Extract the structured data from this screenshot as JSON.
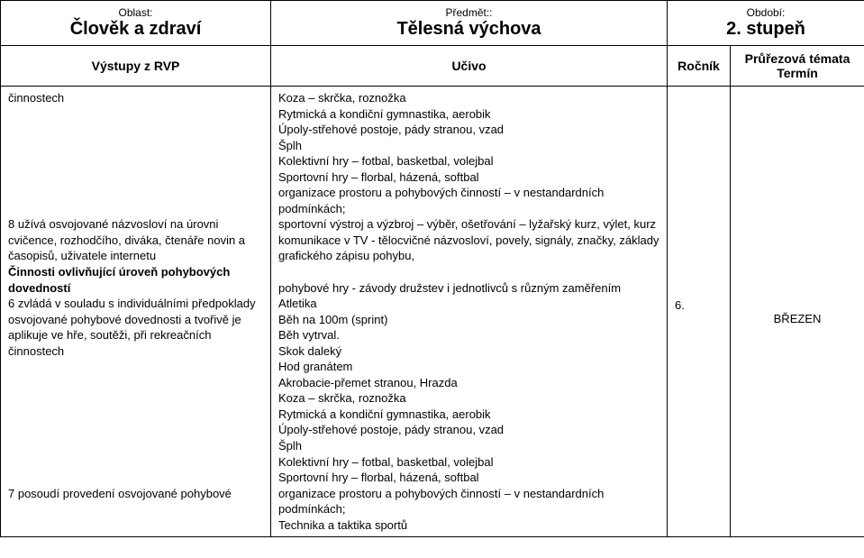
{
  "header": {
    "oblast_label": "Oblast:",
    "oblast_value": "Člověk a zdraví",
    "predmet_label": "Předmět::",
    "predmet_value": "Tělesná výchova",
    "obdobi_label": "Období:",
    "obdobi_value": "2. stupeň"
  },
  "subheader": {
    "vystupy": "Výstupy z RVP",
    "ucivo": "Učivo",
    "rocnik": "Ročník",
    "prurezova_line1": "Průřezová témata",
    "prurezova_line2": "Termín"
  },
  "vystupy_lines": [
    {
      "text": "činnostech",
      "bold": false
    },
    {
      "text": "8 užívá osvojované názvosloví na úrovni cvičence, rozhodčího, diváka, čtenáře novin a časopisů, uživatele internetu",
      "bold": false,
      "spaceBefore": true
    },
    {
      "text": "Činnosti ovlivňující úroveň pohybových dovedností",
      "bold": true
    },
    {
      "text": "6 zvládá v souladu s individuálními předpoklady osvojované pohybové dovednosti a tvořivě je aplikuje ve hře, soutěži, při rekreačních činnostech",
      "bold": false
    },
    {
      "text": "7 posoudí provedení osvojované pohybové",
      "bold": false,
      "spaceBefore2": true
    }
  ],
  "ucivo_lines": [
    "Koza – skrčka, roznožka",
    "Rytmická a kondiční gymnastika, aerobik",
    "Úpoly-střehové postoje, pády stranou, vzad",
    "Šplh",
    "Kolektivní hry – fotbal, basketbal, volejbal",
    "Sportovní hry – florbal, házená, softbal",
    "organizace prostoru a pohybových činností – v nestandardních podmínkách;",
    "sportovní výstroj a výzbroj – výběr, ošetřování – lyžařský kurz, výlet, kurz",
    "komunikace v TV - tělocvičné názvosloví, povely, signály, značky, základy grafického zápisu pohybu,",
    "",
    "pohybové hry - závody družstev i jednotlivců s různým zaměřením",
    "Atletika",
    "Běh na 100m (sprint)",
    "Běh vytrval.",
    "Skok daleký",
    "Hod granátem",
    "Akrobacie-přemet stranou, Hrazda",
    "Koza – skrčka, roznožka",
    "Rytmická a kondiční gymnastika, aerobik",
    "Úpoly-střehové postoje, pády stranou, vzad",
    "Šplh",
    "Kolektivní hry – fotbal, basketbal, volejbal",
    "Sportovní hry – florbal, házená, softbal",
    "organizace prostoru a pohybových činností – v nestandardních podmínkách;",
    "Technika a taktika sportů"
  ],
  "rocnik_value": "6.",
  "prurezova_value": "BŘEZEN"
}
